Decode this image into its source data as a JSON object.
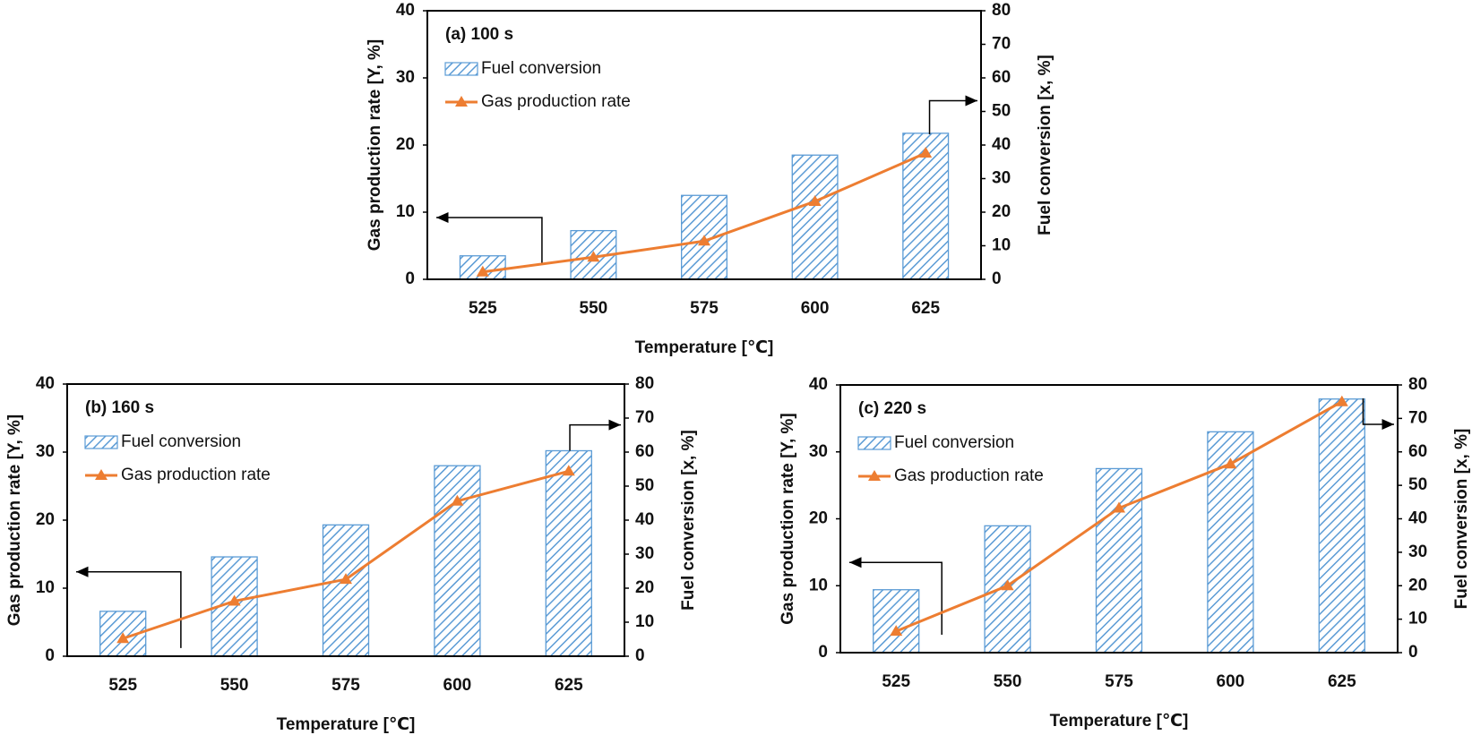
{
  "chart_data": [
    {
      "type": "combo",
      "title": "(a)  100 s",
      "x_label": "Temperature [℃]",
      "y_label": "Gas production rate [Y, %]",
      "y2_label": "Fuel conversion [x, %]",
      "categories": [
        "525",
        "550",
        "575",
        "600",
        "625"
      ],
      "ylim": [
        0,
        40
      ],
      "yticks": [
        0,
        10,
        20,
        30,
        40
      ],
      "y2lim": [
        0,
        80
      ],
      "y2ticks": [
        0,
        10,
        20,
        30,
        40,
        50,
        60,
        70,
        80
      ],
      "legend": "upper left",
      "series": [
        {
          "name": "Fuel conversion",
          "kind": "bar",
          "axis": "y2",
          "color": "#5b9bd5",
          "values": [
            7.0,
            14.5,
            25.0,
            37.0,
            43.5
          ]
        },
        {
          "name": "Gas production rate",
          "kind": "line",
          "axis": "y",
          "color": "#ed7d31",
          "values": [
            1.1,
            3.3,
            5.7,
            11.6,
            18.8
          ]
        }
      ]
    },
    {
      "type": "combo",
      "title": "(b)  160 s",
      "x_label": "Temperature [℃]",
      "y_label": "Gas production rate [Y, %]",
      "y2_label": "Fuel conversion [x, %]",
      "categories": [
        "525",
        "550",
        "575",
        "600",
        "625"
      ],
      "ylim": [
        0,
        40
      ],
      "yticks": [
        0,
        10,
        20,
        30,
        40
      ],
      "y2lim": [
        0,
        80
      ],
      "y2ticks": [
        0,
        10,
        20,
        30,
        40,
        50,
        60,
        70,
        80
      ],
      "legend": "upper left",
      "series": [
        {
          "name": "Fuel conversion",
          "kind": "bar",
          "axis": "y2",
          "color": "#5b9bd5",
          "values": [
            13.2,
            29.2,
            38.6,
            56.0,
            60.4
          ]
        },
        {
          "name": "Gas production rate",
          "kind": "line",
          "axis": "y",
          "color": "#ed7d31",
          "values": [
            2.6,
            8.1,
            11.3,
            22.8,
            27.2
          ]
        }
      ]
    },
    {
      "type": "combo",
      "title": "(c)  220 s",
      "x_label": "Temperature [℃]",
      "y_label": "Gas production rate [Y, %]",
      "y2_label": "Fuel conversion [x, %]",
      "categories": [
        "525",
        "550",
        "575",
        "600",
        "625"
      ],
      "ylim": [
        0,
        40
      ],
      "yticks": [
        0,
        10,
        20,
        30,
        40
      ],
      "y2lim": [
        0,
        80
      ],
      "y2ticks": [
        0,
        10,
        20,
        30,
        40,
        50,
        60,
        70,
        80
      ],
      "legend": "upper left",
      "series": [
        {
          "name": "Fuel conversion",
          "kind": "bar",
          "axis": "y2",
          "color": "#5b9bd5",
          "values": [
            18.8,
            37.9,
            55.0,
            66.0,
            75.8
          ]
        },
        {
          "name": "Gas production rate",
          "kind": "line",
          "axis": "y",
          "color": "#ed7d31",
          "values": [
            3.2,
            10.0,
            21.6,
            28.2,
            37.5
          ]
        }
      ]
    }
  ]
}
